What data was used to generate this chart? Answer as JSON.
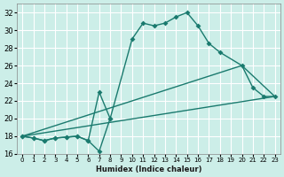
{
  "title": "",
  "xlabel": "Humidex (Indice chaleur)",
  "ylabel": "",
  "bg_color": "#cceee8",
  "grid_color": "#ffffff",
  "line_color": "#1a7a6e",
  "ylim": [
    16,
    33
  ],
  "xlim": [
    -0.5,
    23.5
  ],
  "yticks": [
    16,
    18,
    20,
    22,
    24,
    26,
    28,
    30,
    32
  ],
  "xticks": [
    0,
    1,
    2,
    3,
    4,
    5,
    6,
    7,
    8,
    9,
    10,
    11,
    12,
    13,
    14,
    15,
    16,
    17,
    18,
    19,
    20,
    21,
    22,
    23
  ],
  "series1_x": [
    0,
    1,
    2,
    3,
    4,
    5,
    6,
    7,
    8,
    10,
    11,
    12,
    13,
    14,
    15,
    16,
    17,
    18,
    20,
    21,
    22,
    23
  ],
  "series1_y": [
    18,
    17.8,
    17.5,
    17.8,
    17.9,
    18.0,
    17.5,
    16.3,
    20.0,
    29.0,
    30.8,
    30.5,
    30.8,
    31.5,
    32.0,
    30.5,
    28.5,
    27.5,
    26.0,
    23.5,
    22.5,
    22.5
  ],
  "series2_x": [
    0,
    1,
    2,
    3,
    4,
    5,
    6,
    7,
    8
  ],
  "series2_y": [
    18,
    17.8,
    17.5,
    17.8,
    17.9,
    18.0,
    17.5,
    23.0,
    20.0
  ],
  "series3_x": [
    0,
    23
  ],
  "series3_y": [
    18,
    22.5
  ],
  "series4_x": [
    0,
    20,
    23
  ],
  "series4_y": [
    18,
    26.0,
    22.5
  ]
}
